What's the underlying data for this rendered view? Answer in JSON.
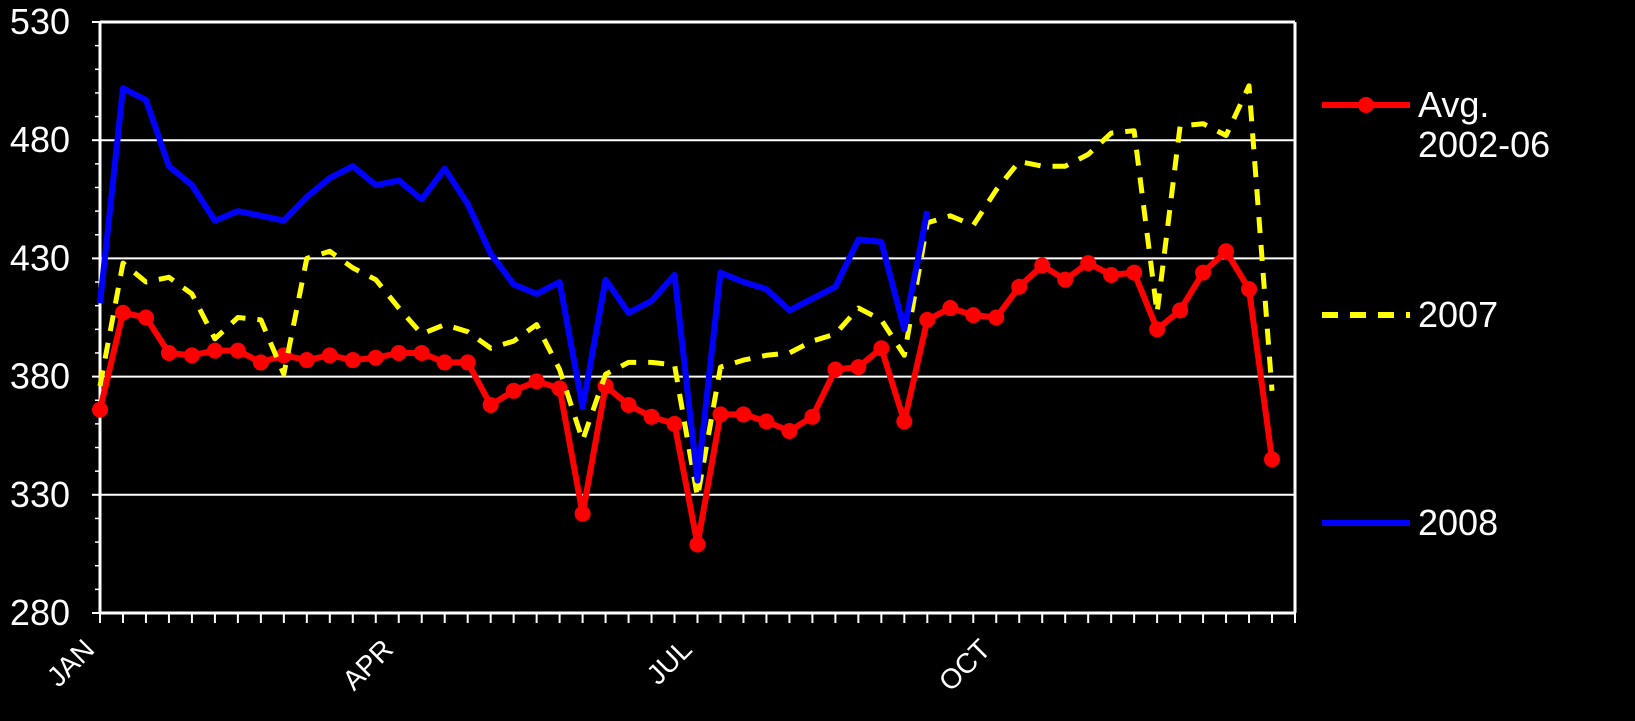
{
  "chart_data": {
    "type": "line",
    "title": "",
    "xlabel": "",
    "ylabel": "",
    "ylim": [
      280,
      530
    ],
    "yticks": [
      280,
      330,
      380,
      430,
      480,
      530
    ],
    "x_tick_labels": [
      {
        "label": "JAN",
        "week": 1
      },
      {
        "label": "APR",
        "week": 14
      },
      {
        "label": "JUL",
        "week": 27
      },
      {
        "label": "OCT",
        "week": 40
      }
    ],
    "x_range_weeks": [
      1,
      53
    ],
    "grid": "horizontal",
    "legend_position": "right",
    "series": [
      {
        "name": "Avg. 2002-06",
        "name_lines": [
          "Avg.",
          "2002-06"
        ],
        "color": "#ff0000",
        "style": "line-markers",
        "values": [
          366,
          407,
          405,
          390,
          389,
          391,
          391,
          386,
          389,
          387,
          389,
          387,
          388,
          390,
          390,
          386,
          386,
          368,
          374,
          378,
          375,
          322,
          376,
          368,
          363,
          360,
          309,
          364,
          364,
          361,
          357,
          363,
          383,
          384,
          392,
          361,
          404,
          409,
          406,
          405,
          418,
          427,
          421,
          428,
          423,
          424,
          400,
          408,
          424,
          433,
          417,
          345
        ]
      },
      {
        "name": "2007",
        "color": "#ffff00",
        "style": "dashed",
        "values": [
          376,
          428,
          420,
          422,
          415,
          396,
          405,
          404,
          381,
          430,
          433,
          426,
          421,
          409,
          398,
          402,
          399,
          392,
          395,
          402,
          383,
          353,
          381,
          386,
          386,
          385,
          329,
          384,
          387,
          389,
          390,
          395,
          398,
          409,
          404,
          389,
          445,
          448,
          444,
          459,
          471,
          469,
          469,
          474,
          483,
          484,
          407,
          486,
          487,
          482,
          503,
          374
        ]
      },
      {
        "name": "2008",
        "color": "#0000ff",
        "style": "solid",
        "values": [
          411,
          502,
          497,
          469,
          461,
          446,
          450,
          448,
          446,
          456,
          464,
          469,
          461,
          463,
          455,
          468,
          453,
          432,
          419,
          415,
          420,
          367,
          421,
          407,
          412,
          423,
          336,
          424,
          420,
          417,
          408,
          413,
          418,
          438,
          437,
          400,
          450
        ]
      }
    ]
  }
}
